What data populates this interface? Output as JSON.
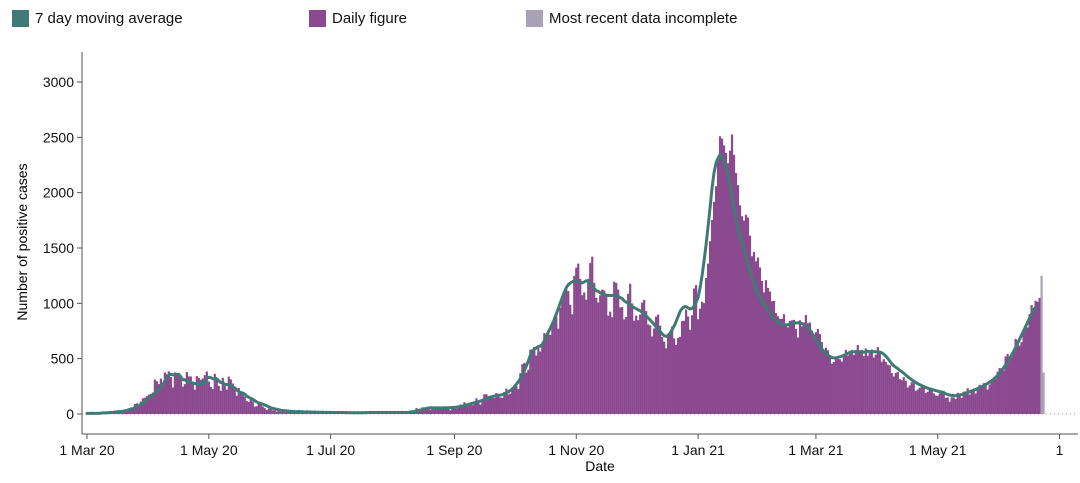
{
  "colors": {
    "average": "#3F7A75",
    "daily": "#8B4A90",
    "incomplete": "#A9A2B5",
    "axis": "#555555",
    "grid": "#999999"
  },
  "legend": {
    "average_label": "7 day moving average",
    "daily_label": "Daily figure",
    "incomplete_label": "Most recent data incomplete"
  },
  "chart_data": {
    "type": "bar",
    "title": "",
    "xlabel": "Date",
    "ylabel": "Number of positive cases",
    "ylim": [
      0,
      3200
    ],
    "yticks": [
      0,
      500,
      1000,
      1500,
      2000,
      2500,
      3000
    ],
    "xticks": [
      {
        "label": "1 Mar 20",
        "day": 0
      },
      {
        "label": "1 May 20",
        "day": 61
      },
      {
        "label": "1 Jul 20",
        "day": 122
      },
      {
        "label": "1 Sep 20",
        "day": 184
      },
      {
        "label": "1 Nov 20",
        "day": 245
      },
      {
        "label": "1 Jan 21",
        "day": 306
      },
      {
        "label": "1 Mar 21",
        "day": 365
      },
      {
        "label": "1 May 21",
        "day": 426
      },
      {
        "label": "1",
        "day": 487
      }
    ],
    "series": [
      {
        "name": "Daily figure",
        "role": "bars",
        "days_from_1_Mar_20": "0-484",
        "values": [
          8,
          0,
          5,
          0,
          12,
          7,
          9,
          5,
          12,
          9,
          7,
          17,
          14,
          22,
          20,
          30,
          19,
          17,
          19,
          41,
          30,
          52,
          58,
          45,
          90,
          96,
          87,
          113,
          142,
          147,
          161,
          175,
          182,
          194,
          312,
          296,
          270,
          320,
          251,
          375,
          359,
          385,
          334,
          239,
          376,
          372,
          365,
          316,
          247,
          270,
          380,
          340,
          339,
          293,
          219,
          342,
          326,
          309,
          322,
          351,
          384,
          295,
          246,
          225,
          363,
          327,
          255,
          211,
          327,
          254,
          220,
          338,
          313,
          276,
          243,
          165,
          236,
          201,
          191,
          157,
          118,
          108,
          145,
          114,
          66,
          70,
          105,
          102,
          68,
          53,
          36,
          48,
          45,
          33,
          34,
          23,
          41,
          20,
          24,
          27,
          14,
          18,
          28,
          10,
          16,
          16,
          12,
          21,
          24,
          23,
          24,
          15,
          18,
          19,
          16,
          21,
          19,
          16,
          12,
          13,
          23,
          14,
          15,
          11,
          16,
          15,
          13,
          11,
          10,
          12,
          8,
          11,
          14,
          11,
          9,
          17,
          9,
          8,
          10,
          13,
          9,
          16,
          16,
          16,
          14,
          15,
          13,
          14,
          15,
          21,
          12,
          13,
          15,
          12,
          18,
          12,
          11,
          15,
          18,
          9,
          18,
          12,
          23,
          25,
          27,
          54,
          39,
          48,
          61,
          54,
          41,
          40,
          37,
          45,
          42,
          49,
          51,
          51,
          57,
          59,
          47,
          56,
          34,
          49,
          50,
          48,
          70,
          86,
          77,
          106,
          95,
          72,
          104,
          79,
          91,
          142,
          103,
          85,
          133,
          179,
          178,
          150,
          162,
          154,
          144,
          189,
          173,
          150,
          146,
          200,
          229,
          177,
          185,
          222,
          247,
          266,
          226,
          369,
          450,
          462,
          374,
          400,
          582,
          560,
          606,
          528,
          594,
          564,
          622,
          731,
          702,
          727,
          714,
          803,
          877,
          888,
          771,
          961,
          1030,
          1111,
          1124,
          1111,
          987,
          901,
          1248,
          1323,
          1359,
          1221,
          1073,
          1098,
          1032,
          1222,
          1364,
          1422,
          1185,
          1050,
          1008,
          1073,
          1125,
          1116,
          1063,
          889,
          925,
          875,
          1195,
          1185,
          1124,
          963,
          966,
          854,
          877,
          1087,
          1177,
          999,
          843,
          889,
          848,
          899,
          1007,
          1031,
          930,
          810,
          801,
          701,
          773,
          880,
          898,
          798,
          696,
          654,
          594,
          727,
          745,
          790,
          683,
          624,
          686,
          698,
          840,
          843,
          943,
          881,
          761,
          892,
          1134,
          1165,
          856,
          952,
          1014,
          1002,
          1229,
          1359,
          1561,
          1753,
          1917,
          2058,
          2309,
          2510,
          2488,
          2427,
          2360,
          2266,
          2380,
          2526,
          2342,
          2177,
          2068,
          1886,
          1787,
          1748,
          1800,
          1775,
          1611,
          1426,
          1465,
          1380,
          1414,
          1324,
          1202,
          1099,
          1209,
          1140,
          1107,
          1019,
          1021,
          913,
          883,
          860,
          860,
          901,
          800,
          783,
          842,
          846,
          851,
          770,
          691,
          847,
          792,
          826,
          895,
          819,
          827,
          753,
          715,
          739,
          769,
          722,
          650,
          561,
          599,
          576,
          533,
          455,
          470,
          497,
          499,
          494,
          473,
          542,
          580,
          528,
          571,
          578,
          534,
          571,
          623,
          558,
          580,
          523,
          592,
          526,
          573,
          582,
          511,
          536,
          605,
          557,
          472,
          495,
          472,
          445,
          440,
          370,
          339,
          372,
          381,
          316,
          306,
          333,
          301,
          239,
          258,
          287,
          279,
          209,
          222,
          238,
          262,
          262,
          191,
          201,
          220,
          215,
          186,
          167,
          165,
          185,
          213,
          209,
          146,
          150,
          111,
          151,
          150,
          135,
          192,
          185,
          146,
          202,
          204,
          233,
          176,
          196,
          217,
          185,
          224,
          264,
          255,
          278,
          282,
          221,
          266,
          296,
          327,
          315,
          383,
          415,
          413,
          393,
          520,
          543,
          519,
          511,
          571,
          679,
          665,
          618,
          650,
          737,
          780,
          782,
          902,
          983,
          951,
          1024,
          1014,
          1049
        ]
      },
      {
        "name": "7 day moving average",
        "role": "line",
        "days_from_1_Mar_20": "0-484",
        "values": [
          6,
          6,
          7,
          6,
          6,
          6,
          7,
          8,
          10,
          10,
          11,
          12,
          13,
          15,
          18,
          20,
          21,
          23,
          25,
          29,
          32,
          38,
          44,
          49,
          57,
          67,
          77,
          88,
          102,
          113,
          126,
          139,
          148,
          168,
          189,
          208,
          226,
          244,
          266,
          297,
          328,
          353,
          359,
          354,
          355,
          358,
          358,
          334,
          310,
          309,
          296,
          297,
          284,
          278,
          274,
          276,
          276,
          276,
          274,
          290,
          321,
          332,
          328,
          319,
          318,
          318,
          300,
          284,
          282,
          268,
          267,
          264,
          256,
          245,
          235,
          217,
          204,
          194,
          189,
          180,
          161,
          151,
          142,
          133,
          121,
          109,
          101,
          95,
          88,
          81,
          74,
          66,
          56,
          51,
          47,
          43,
          39,
          34,
          32,
          30,
          28,
          26,
          24,
          23,
          22,
          21,
          21,
          21,
          20,
          19,
          19,
          19,
          18,
          17,
          17,
          17,
          16,
          16,
          16,
          15,
          15,
          15,
          14,
          14,
          14,
          13,
          13,
          13,
          13,
          12,
          12,
          12,
          12,
          11,
          11,
          11,
          11,
          11,
          11,
          12,
          12,
          13,
          13,
          13,
          14,
          14,
          14,
          14,
          14,
          14,
          14,
          14,
          14,
          14,
          14,
          14,
          14,
          14,
          14,
          14,
          14,
          16,
          18,
          20,
          23,
          27,
          32,
          36,
          41,
          46,
          51,
          54,
          56,
          55,
          55,
          55,
          55,
          54,
          55,
          56,
          57,
          57,
          58,
          59,
          60,
          62,
          65,
          68,
          72,
          76,
          81,
          86,
          92,
          97,
          102,
          106,
          111,
          117,
          124,
          132,
          140,
          148,
          153,
          158,
          162,
          166,
          169,
          171,
          175,
          181,
          190,
          200,
          213,
          228,
          246,
          270,
          292,
          320,
          357,
          393,
          433,
          479,
          531,
          567,
          588,
          596,
          608,
          615,
          629,
          661,
          701,
          740,
          775,
          813,
          855,
          905,
          952,
          1004,
          1051,
          1100,
          1141,
          1169,
          1184,
          1195,
          1201,
          1201,
          1196,
          1191,
          1184,
          1193,
          1204,
          1198,
          1180,
          1158,
          1133,
          1115,
          1108,
          1096,
          1083,
          1079,
          1074,
          1072,
          1070,
          1072,
          1073,
          1070,
          1063,
          1052,
          1044,
          1023,
          1012,
          1000,
          988,
          969,
          962,
          952,
          941,
          933,
          918,
          906,
          886,
          868,
          849,
          830,
          809,
          785,
          764,
          746,
          724,
          708,
          701,
          709,
          732,
          762,
          794,
          835,
          881,
          927,
          953,
          969,
          970,
          959,
          949,
          954,
          975,
          1009,
          1054,
          1139,
          1251,
          1384,
          1530,
          1693,
          1863,
          2045,
          2183,
          2270,
          2312,
          2341,
          2327,
          2280,
          2224,
          2160,
          2070,
          1961,
          1858,
          1762,
          1675,
          1605,
          1550,
          1493,
          1422,
          1352,
          1289,
          1233,
          1185,
          1129,
          1083,
          1050,
          1019,
          991,
          965,
          935,
          906,
          882,
          860,
          845,
          828,
          818,
          812,
          808,
          805,
          806,
          812,
          818,
          822,
          823,
          823,
          822,
          818,
          806,
          791,
          776,
          757,
          730,
          701,
          675,
          649,
          617,
          588,
          565,
          545,
          532,
          520,
          509,
          507,
          507,
          512,
          517,
          523,
          530,
          539,
          549,
          555,
          560,
          562,
          566,
          565,
          563,
          560,
          559,
          563,
          567,
          565,
          563,
          564,
          563,
          563,
          559,
          553,
          540,
          523,
          502,
          478,
          454,
          436,
          422,
          410,
          396,
          383,
          368,
          352,
          337,
          323,
          309,
          295,
          285,
          274,
          265,
          257,
          246,
          240,
          233,
          227,
          223,
          217,
          212,
          207,
          202,
          196,
          190,
          183,
          176,
          171,
          168,
          166,
          167,
          169,
          172,
          176,
          181,
          188,
          195,
          201,
          208,
          215,
          222,
          230,
          238,
          247,
          256,
          266,
          277,
          289,
          301,
          315,
          331,
          350,
          371,
          394,
          418,
          443,
          470,
          500,
          532,
          565,
          600,
          637,
          676,
          714,
          752,
          791,
          829,
          867,
          905,
          942,
          965
        ]
      },
      {
        "name": "Most recent data incomplete",
        "role": "bars",
        "days_from_1_Mar_20": "485-486",
        "values": [
          1250,
          375
        ]
      }
    ]
  }
}
